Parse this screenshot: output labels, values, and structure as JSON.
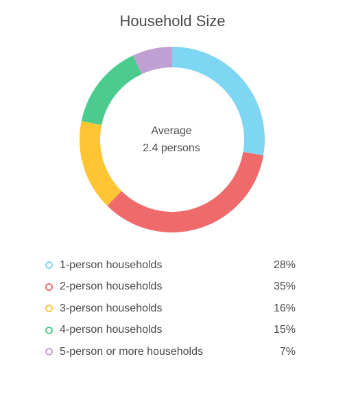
{
  "chart_data": {
    "type": "pie",
    "title": "Household Size",
    "center_text": {
      "line1": "Average",
      "line2": "2.4 persons"
    },
    "categories": [
      "1-person households",
      "2-person households",
      "3-person households",
      "4-person households",
      "5-person or more households"
    ],
    "values": [
      28,
      35,
      16,
      15,
      7
    ],
    "value_labels": [
      "28%",
      "35%",
      "16%",
      "15%",
      "7%"
    ],
    "colors": [
      "#7fd6f2",
      "#ef6b6b",
      "#ffc533",
      "#4ccb8f",
      "#c0a0d2"
    ],
    "unit": "%",
    "legend_position": "bottom",
    "start_angle_deg": 0,
    "direction": "clockwise",
    "donut": true
  }
}
